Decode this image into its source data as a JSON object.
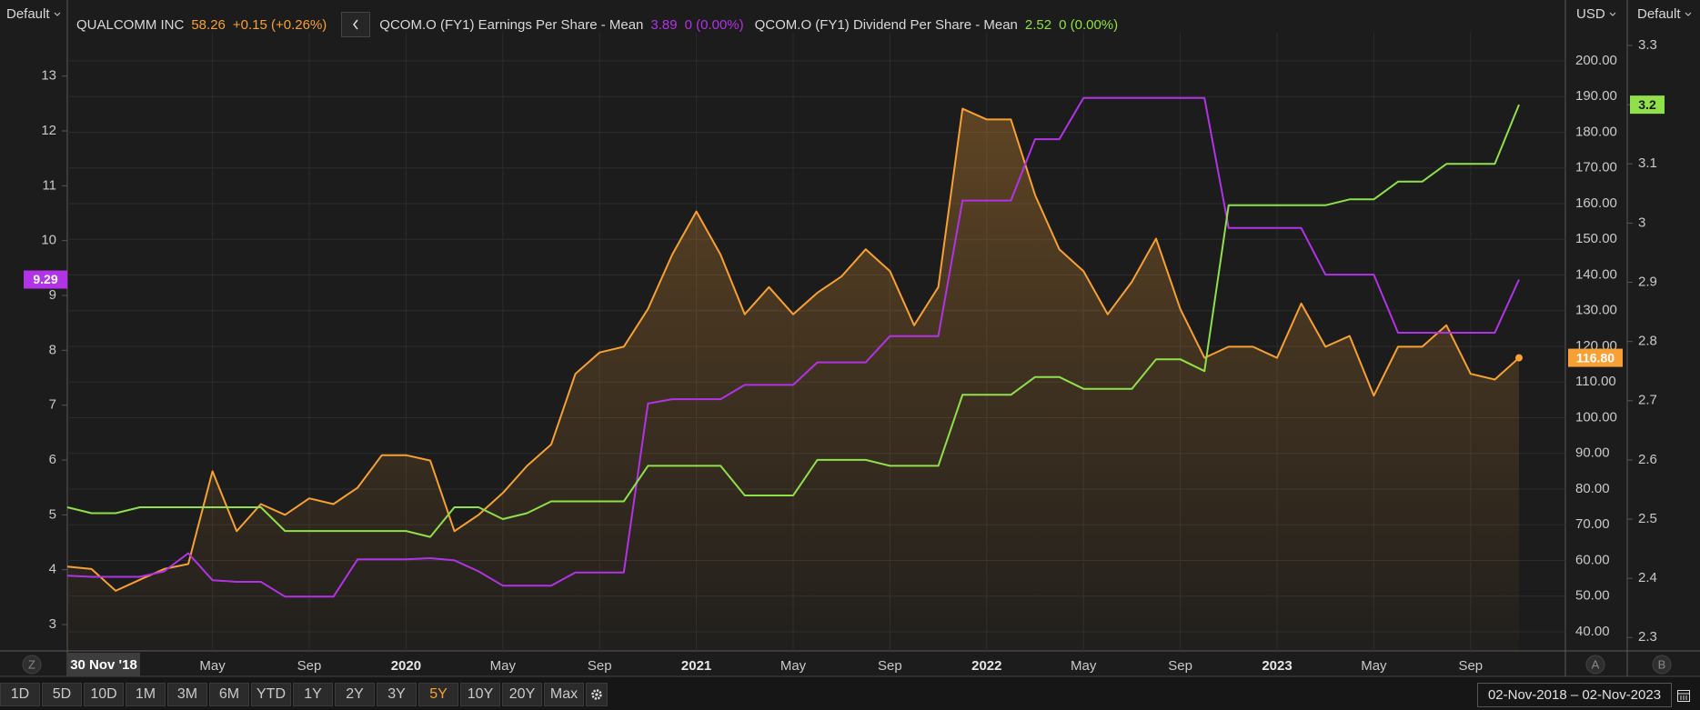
{
  "toolbar": {
    "left_menu": "Default",
    "currency_menu": "USD",
    "right_menu": "Default",
    "axis_badges": [
      "Z",
      "A",
      "B"
    ],
    "range_buttons": [
      {
        "label": "1D"
      },
      {
        "label": "5D"
      },
      {
        "label": "10D"
      },
      {
        "label": "1M"
      },
      {
        "label": "3M"
      },
      {
        "label": "6M"
      },
      {
        "label": "YTD"
      },
      {
        "label": "1Y"
      },
      {
        "label": "2Y"
      },
      {
        "label": "3Y"
      },
      {
        "label": "5Y",
        "active": true
      },
      {
        "label": "10Y"
      },
      {
        "label": "20Y"
      },
      {
        "label": "Max"
      }
    ],
    "date_range": "02-Nov-2018 – 02-Nov-2023"
  },
  "chart_data": {
    "type": "line",
    "grid": true,
    "cursor_label": "30 Nov '18",
    "x": [
      "2018-11",
      "2018-12",
      "2019-01",
      "2019-02",
      "2019-03",
      "2019-04",
      "2019-05",
      "2019-06",
      "2019-07",
      "2019-08",
      "2019-09",
      "2019-10",
      "2019-11",
      "2019-12",
      "2020-01",
      "2020-02",
      "2020-03",
      "2020-04",
      "2020-05",
      "2020-06",
      "2020-07",
      "2020-08",
      "2020-09",
      "2020-10",
      "2020-11",
      "2020-12",
      "2021-01",
      "2021-02",
      "2021-03",
      "2021-04",
      "2021-05",
      "2021-06",
      "2021-07",
      "2021-08",
      "2021-09",
      "2021-10",
      "2021-11",
      "2021-12",
      "2022-01",
      "2022-02",
      "2022-03",
      "2022-04",
      "2022-05",
      "2022-06",
      "2022-07",
      "2022-08",
      "2022-09",
      "2022-10",
      "2022-11",
      "2022-12",
      "2023-01",
      "2023-02",
      "2023-03",
      "2023-04",
      "2023-05",
      "2023-06",
      "2023-07",
      "2023-08",
      "2023-09",
      "2023-10",
      "2023-11"
    ],
    "xticks": [
      {
        "value": "2019-05",
        "label": "May"
      },
      {
        "value": "2019-09",
        "label": "Sep"
      },
      {
        "value": "2020-01",
        "label": "2020"
      },
      {
        "value": "2020-05",
        "label": "May"
      },
      {
        "value": "2020-09",
        "label": "Sep"
      },
      {
        "value": "2021-01",
        "label": "2021"
      },
      {
        "value": "2021-05",
        "label": "May"
      },
      {
        "value": "2021-09",
        "label": "Sep"
      },
      {
        "value": "2022-01",
        "label": "2022"
      },
      {
        "value": "2022-05",
        "label": "May"
      },
      {
        "value": "2022-09",
        "label": "Sep"
      },
      {
        "value": "2023-01",
        "label": "2023"
      },
      {
        "value": "2023-05",
        "label": "May"
      },
      {
        "value": "2023-09",
        "label": "Sep"
      }
    ],
    "series": [
      {
        "name": "QUALCOMM INC",
        "color": "#f7a035",
        "axis": "y2",
        "area": true,
        "change": "+0.15 (+0.26%)",
        "values": [
          58.26,
          57.6,
          51.5,
          54.6,
          57.6,
          59,
          85,
          68.2,
          75.8,
          72.8,
          77.4,
          75.8,
          80.4,
          89.5,
          89.5,
          88,
          68.2,
          72.8,
          78.9,
          86.5,
          92.5,
          112.3,
          118.3,
          119.9,
          130.5,
          145.7,
          157.8,
          145.7,
          129,
          136.6,
          129,
          135,
          139.6,
          147.2,
          141.1,
          125.9,
          136.6,
          186.6,
          183.6,
          183.6,
          162.4,
          147.2,
          141.1,
          129,
          138.1,
          150.2,
          130.5,
          116.8,
          119.9,
          119.9,
          116.8,
          132,
          119.9,
          122.9,
          106.2,
          119.9,
          119.9,
          125.9,
          112.3,
          110.7,
          116.8
        ],
        "value_labels": [
          null,
          null,
          null,
          null,
          null,
          null,
          null,
          null,
          null,
          null,
          null,
          null,
          null,
          null,
          null,
          null,
          null,
          null,
          null,
          null,
          null,
          null,
          null,
          null,
          null,
          null,
          null,
          null,
          null,
          null,
          null,
          null,
          null,
          null,
          null,
          null,
          null,
          null,
          null,
          null,
          null,
          null,
          null,
          null,
          null,
          null,
          null,
          null,
          null,
          null,
          null,
          null,
          null,
          null,
          null,
          null,
          null,
          null,
          null,
          null,
          "116.80"
        ]
      },
      {
        "name": "QCOM.O (FY1) Earnings Per Share - Mean",
        "color": "#b233e6",
        "axis": "y",
        "change": "0 (0.00%)",
        "values": [
          3.89,
          3.87,
          3.87,
          3.87,
          3.97,
          4.3,
          3.81,
          3.78,
          3.78,
          3.51,
          3.51,
          3.51,
          4.19,
          4.19,
          4.19,
          4.21,
          4.17,
          3.97,
          3.71,
          3.71,
          3.71,
          3.95,
          3.95,
          3.95,
          7.03,
          7.11,
          7.11,
          7.11,
          7.37,
          7.37,
          7.37,
          7.78,
          7.78,
          7.78,
          8.26,
          8.26,
          8.26,
          10.73,
          10.73,
          10.73,
          11.85,
          11.85,
          12.6,
          12.6,
          12.6,
          12.6,
          12.6,
          12.6,
          10.23,
          10.23,
          10.23,
          10.23,
          9.38,
          9.38,
          9.38,
          8.32,
          8.32,
          8.32,
          8.32,
          8.32,
          9.29
        ]
      },
      {
        "name": "QCOM.O (FY1) Dividend Per Share - Mean",
        "color": "#8fe04a",
        "axis": "y3",
        "change": "0 (0.00%)",
        "values": [
          2.52,
          2.51,
          2.51,
          2.52,
          2.52,
          2.52,
          2.52,
          2.52,
          2.52,
          2.48,
          2.48,
          2.48,
          2.48,
          2.48,
          2.48,
          2.47,
          2.52,
          2.52,
          2.5,
          2.51,
          2.53,
          2.53,
          2.53,
          2.53,
          2.59,
          2.59,
          2.59,
          2.59,
          2.54,
          2.54,
          2.54,
          2.6,
          2.6,
          2.6,
          2.59,
          2.59,
          2.59,
          2.71,
          2.71,
          2.71,
          2.74,
          2.74,
          2.72,
          2.72,
          2.72,
          2.77,
          2.77,
          2.75,
          3.03,
          3.03,
          3.03,
          3.03,
          3.03,
          3.04,
          3.04,
          3.07,
          3.07,
          3.1,
          3.1,
          3.1,
          3.2
        ]
      }
    ],
    "ylim": [
      2.52,
      13.79
    ],
    "yticks": [
      3,
      4,
      5,
      6,
      7,
      8,
      9,
      10,
      11,
      12,
      13
    ],
    "y2lim": [
      34.65,
      207.9
    ],
    "y2ticks": [
      {
        "value": 40,
        "label": "40.00"
      },
      {
        "value": 50,
        "label": "50.00"
      },
      {
        "value": 60,
        "label": "60.00"
      },
      {
        "value": 70,
        "label": "70.00"
      },
      {
        "value": 80,
        "label": "80.00"
      },
      {
        "value": 90,
        "label": "90.00"
      },
      {
        "value": 100,
        "label": "100.00"
      },
      {
        "value": 110,
        "label": "110.00"
      },
      {
        "value": 120,
        "label": "120.00"
      },
      {
        "value": 130,
        "label": "130.00"
      },
      {
        "value": 140,
        "label": "140.00"
      },
      {
        "value": 150,
        "label": "150.00"
      },
      {
        "value": 160,
        "label": "160.00"
      },
      {
        "value": 170,
        "label": "170.00"
      },
      {
        "value": 180,
        "label": "180.00"
      },
      {
        "value": 190,
        "label": "190.00"
      },
      {
        "value": 200,
        "label": "200.00"
      }
    ],
    "y3lim": [
      2.2774,
      3.3215
    ],
    "y3ticks": [
      2.3,
      2.4,
      2.5,
      2.6,
      2.7,
      2.8,
      2.9,
      3,
      3.1,
      3.2,
      3.3
    ]
  }
}
